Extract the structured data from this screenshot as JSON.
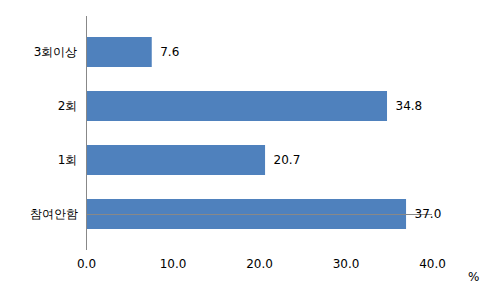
{
  "chart_data": {
    "type": "bar",
    "orientation": "horizontal",
    "categories": [
      "3회이상",
      "2회",
      "1회",
      "참여안함"
    ],
    "values": [
      7.6,
      34.8,
      20.7,
      37.0
    ],
    "value_labels": [
      "7.6",
      "34.8",
      "20.7",
      "37.0"
    ],
    "data_labels": true,
    "color": "#4f81bd",
    "xlabel": "%",
    "xlim": [
      0,
      40
    ],
    "xticks": [
      {
        "value": 0,
        "label": "0.0"
      },
      {
        "value": 10,
        "label": "10.0"
      },
      {
        "value": 20,
        "label": "20.0"
      },
      {
        "value": 30,
        "label": "30.0"
      },
      {
        "value": 40,
        "label": "40.0"
      }
    ],
    "grid": false
  }
}
